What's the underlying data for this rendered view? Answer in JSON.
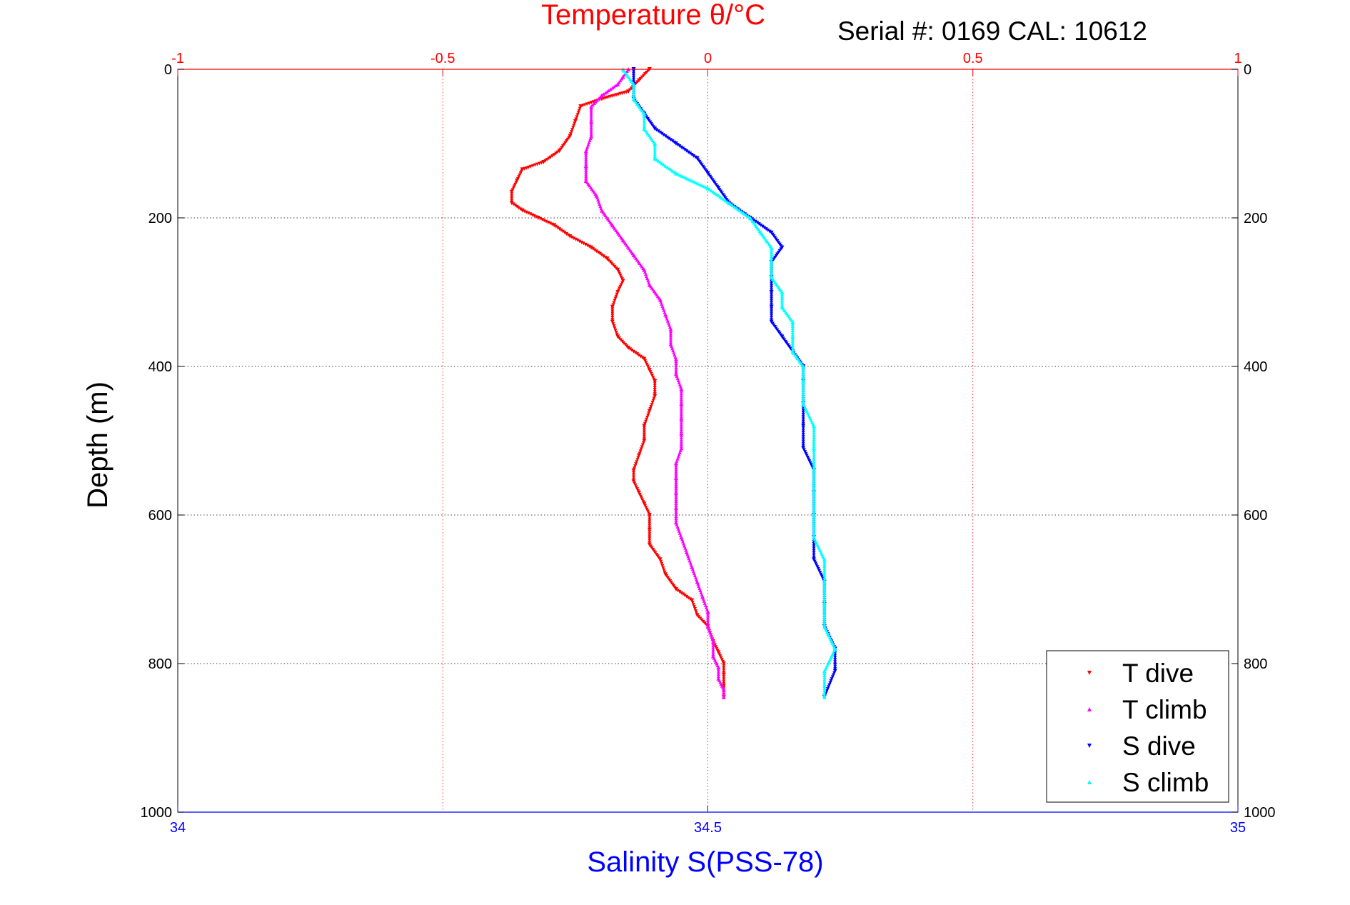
{
  "chart_data": {
    "type": "scatter",
    "title": "Temperature θ/°C",
    "annotation": "Serial #: 0169 CAL: 10612",
    "ylabel": "Depth (m)",
    "xlabel": "Salinity S(PSS-78)",
    "y_axis": {
      "range": [
        0,
        1000
      ],
      "reversed": true,
      "ticks": [
        0,
        200,
        400,
        600,
        800,
        1000
      ],
      "tick_labels": [
        "0",
        "200",
        "400",
        "600",
        "800",
        "1000"
      ],
      "grid": true
    },
    "temperature_axis": {
      "position": "top",
      "range": [
        -1,
        1
      ],
      "ticks": [
        -1,
        -0.5,
        0,
        0.5,
        1
      ],
      "tick_labels": [
        "-1",
        "-0.5",
        "0",
        "0.5",
        "1"
      ],
      "grid": true,
      "color": "#ff0000"
    },
    "salinity_axis": {
      "position": "bottom",
      "range": [
        34,
        35
      ],
      "ticks": [
        34,
        34.5,
        35
      ],
      "tick_labels": [
        "34",
        "34.5",
        "35"
      ],
      "color": "#0000ff"
    },
    "legend": {
      "placement": "bottom-right",
      "entries": [
        "T dive",
        "T climb",
        "S dive",
        "S climb"
      ]
    },
    "series": [
      {
        "name": "T dive",
        "axis": "temperature",
        "color": "#ff0000",
        "marker": "triangle-down",
        "points": [
          [
            -0.11,
            0
          ],
          [
            -0.13,
            15
          ],
          [
            -0.15,
            30
          ],
          [
            -0.2,
            40
          ],
          [
            -0.24,
            50
          ],
          [
            -0.25,
            70
          ],
          [
            -0.26,
            90
          ],
          [
            -0.28,
            110
          ],
          [
            -0.31,
            125
          ],
          [
            -0.35,
            135
          ],
          [
            -0.36,
            150
          ],
          [
            -0.37,
            165
          ],
          [
            -0.37,
            180
          ],
          [
            -0.35,
            190
          ],
          [
            -0.32,
            200
          ],
          [
            -0.29,
            210
          ],
          [
            -0.26,
            225
          ],
          [
            -0.22,
            240
          ],
          [
            -0.19,
            255
          ],
          [
            -0.17,
            270
          ],
          [
            -0.16,
            285
          ],
          [
            -0.17,
            300
          ],
          [
            -0.18,
            320
          ],
          [
            -0.18,
            340
          ],
          [
            -0.17,
            360
          ],
          [
            -0.15,
            375
          ],
          [
            -0.12,
            390
          ],
          [
            -0.11,
            405
          ],
          [
            -0.1,
            420
          ],
          [
            -0.1,
            440
          ],
          [
            -0.11,
            460
          ],
          [
            -0.12,
            480
          ],
          [
            -0.12,
            500
          ],
          [
            -0.13,
            520
          ],
          [
            -0.14,
            540
          ],
          [
            -0.14,
            555
          ],
          [
            -0.13,
            570
          ],
          [
            -0.12,
            585
          ],
          [
            -0.11,
            600
          ],
          [
            -0.11,
            620
          ],
          [
            -0.11,
            640
          ],
          [
            -0.09,
            660
          ],
          [
            -0.08,
            680
          ],
          [
            -0.06,
            700
          ],
          [
            -0.03,
            715
          ],
          [
            -0.02,
            735
          ],
          [
            0,
            750
          ],
          [
            0.01,
            770
          ],
          [
            0.02,
            785
          ],
          [
            0.03,
            800
          ],
          [
            0.03,
            815
          ],
          [
            0.03,
            830
          ],
          [
            0.03,
            845
          ]
        ]
      },
      {
        "name": "T climb",
        "axis": "temperature",
        "color": "#ff00ff",
        "marker": "triangle-up",
        "points": [
          [
            -0.15,
            0
          ],
          [
            -0.16,
            10
          ],
          [
            -0.17,
            20
          ],
          [
            -0.2,
            35
          ],
          [
            -0.22,
            50
          ],
          [
            -0.22,
            70
          ],
          [
            -0.22,
            90
          ],
          [
            -0.23,
            110
          ],
          [
            -0.23,
            130
          ],
          [
            -0.23,
            150
          ],
          [
            -0.21,
            170
          ],
          [
            -0.2,
            190
          ],
          [
            -0.18,
            210
          ],
          [
            -0.16,
            230
          ],
          [
            -0.14,
            250
          ],
          [
            -0.12,
            270
          ],
          [
            -0.11,
            290
          ],
          [
            -0.09,
            310
          ],
          [
            -0.08,
            330
          ],
          [
            -0.07,
            350
          ],
          [
            -0.07,
            370
          ],
          [
            -0.06,
            390
          ],
          [
            -0.06,
            410
          ],
          [
            -0.05,
            430
          ],
          [
            -0.05,
            450
          ],
          [
            -0.05,
            470
          ],
          [
            -0.05,
            490
          ],
          [
            -0.05,
            510
          ],
          [
            -0.06,
            530
          ],
          [
            -0.06,
            550
          ],
          [
            -0.06,
            570
          ],
          [
            -0.06,
            590
          ],
          [
            -0.06,
            610
          ],
          [
            -0.05,
            630
          ],
          [
            -0.04,
            650
          ],
          [
            -0.03,
            670
          ],
          [
            -0.02,
            690
          ],
          [
            -0.01,
            710
          ],
          [
            0,
            730
          ],
          [
            0,
            750
          ],
          [
            0.01,
            770
          ],
          [
            0.01,
            790
          ],
          [
            0.02,
            805
          ],
          [
            0.02,
            820
          ],
          [
            0.03,
            835
          ],
          [
            0.03,
            845
          ]
        ]
      },
      {
        "name": "S dive",
        "axis": "salinity",
        "color": "#0000ff",
        "marker": "triangle-down",
        "points": [
          [
            34.43,
            0
          ],
          [
            34.43,
            20
          ],
          [
            34.43,
            40
          ],
          [
            34.44,
            60
          ],
          [
            34.45,
            80
          ],
          [
            34.47,
            100
          ],
          [
            34.49,
            120
          ],
          [
            34.5,
            140
          ],
          [
            34.51,
            160
          ],
          [
            34.52,
            180
          ],
          [
            34.54,
            200
          ],
          [
            34.56,
            220
          ],
          [
            34.57,
            240
          ],
          [
            34.56,
            260
          ],
          [
            34.56,
            280
          ],
          [
            34.56,
            300
          ],
          [
            34.56,
            320
          ],
          [
            34.56,
            340
          ],
          [
            34.57,
            360
          ],
          [
            34.58,
            380
          ],
          [
            34.59,
            400
          ],
          [
            34.59,
            420
          ],
          [
            34.59,
            450
          ],
          [
            34.59,
            480
          ],
          [
            34.59,
            510
          ],
          [
            34.6,
            540
          ],
          [
            34.6,
            570
          ],
          [
            34.6,
            600
          ],
          [
            34.6,
            630
          ],
          [
            34.6,
            660
          ],
          [
            34.61,
            690
          ],
          [
            34.61,
            720
          ],
          [
            34.61,
            750
          ],
          [
            34.62,
            780
          ],
          [
            34.62,
            810
          ],
          [
            34.61,
            845
          ]
        ]
      },
      {
        "name": "S climb",
        "axis": "salinity",
        "color": "#00ffff",
        "marker": "triangle-up",
        "points": [
          [
            34.42,
            0
          ],
          [
            34.43,
            20
          ],
          [
            34.43,
            40
          ],
          [
            34.44,
            60
          ],
          [
            34.44,
            80
          ],
          [
            34.45,
            100
          ],
          [
            34.45,
            120
          ],
          [
            34.47,
            140
          ],
          [
            34.5,
            160
          ],
          [
            34.52,
            180
          ],
          [
            34.54,
            200
          ],
          [
            34.55,
            220
          ],
          [
            34.56,
            240
          ],
          [
            34.56,
            260
          ],
          [
            34.56,
            280
          ],
          [
            34.57,
            300
          ],
          [
            34.57,
            320
          ],
          [
            34.58,
            340
          ],
          [
            34.58,
            360
          ],
          [
            34.58,
            380
          ],
          [
            34.59,
            400
          ],
          [
            34.59,
            420
          ],
          [
            34.59,
            450
          ],
          [
            34.6,
            480
          ],
          [
            34.6,
            510
          ],
          [
            34.6,
            540
          ],
          [
            34.6,
            570
          ],
          [
            34.6,
            600
          ],
          [
            34.6,
            630
          ],
          [
            34.61,
            660
          ],
          [
            34.61,
            690
          ],
          [
            34.61,
            720
          ],
          [
            34.61,
            750
          ],
          [
            34.62,
            780
          ],
          [
            34.61,
            810
          ],
          [
            34.61,
            845
          ]
        ]
      }
    ]
  }
}
